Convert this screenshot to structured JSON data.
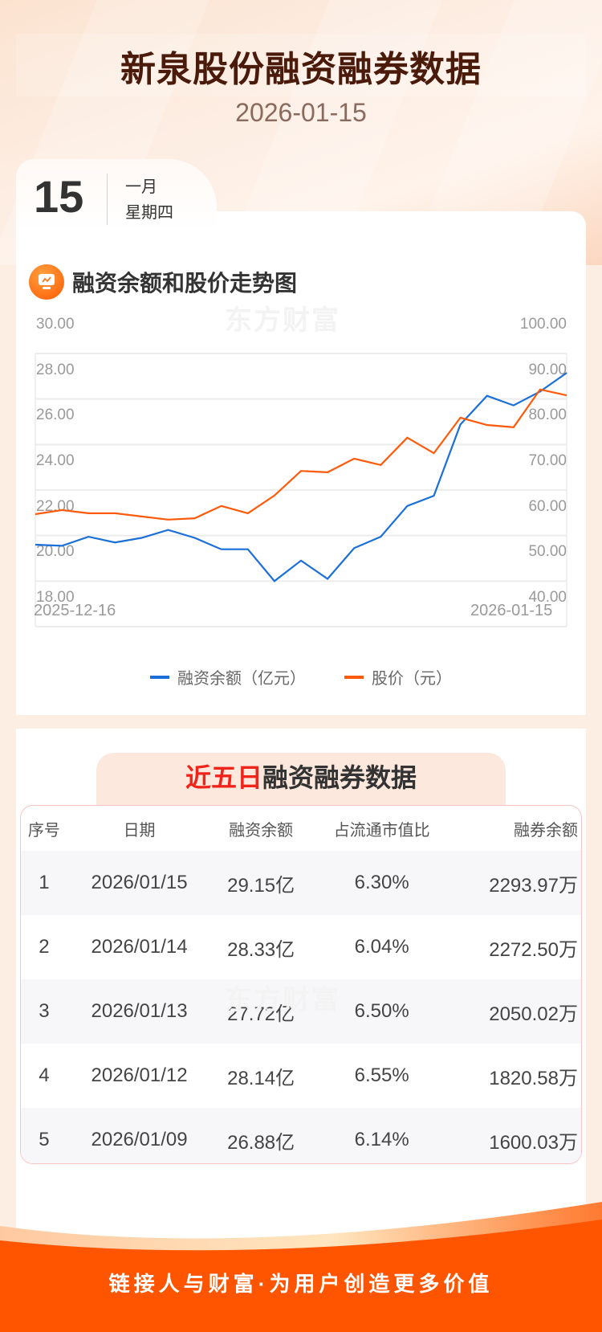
{
  "header": {
    "title": "新泉股份融资融券数据",
    "date": "2026-01-15"
  },
  "date_tab": {
    "day": "15",
    "month": "一月",
    "weekday": "星期四"
  },
  "chart_section": {
    "title": "融资余额和股价走势图",
    "icon": "chart-trend-icon",
    "watermark": "东方财富"
  },
  "chart_data": {
    "type": "line",
    "title": "融资余额和股价走势图",
    "x_start_label": "2025-12-16",
    "x_end_label": "2026-01-15",
    "x": [
      1,
      2,
      3,
      4,
      5,
      6,
      7,
      8,
      9,
      10,
      11,
      12,
      13,
      14,
      15,
      16,
      17,
      18,
      19,
      20,
      21
    ],
    "left_axis": {
      "label": "融资余额（亿元）",
      "ticks": [
        "30.00",
        "28.00",
        "26.00",
        "24.00",
        "22.00",
        "20.00",
        "18.00"
      ],
      "range": [
        18,
        30
      ]
    },
    "right_axis": {
      "label": "股价（元）",
      "ticks": [
        "100.00",
        "90.00",
        "80.00",
        "70.00",
        "60.00",
        "50.00",
        "40.00"
      ],
      "range": [
        40,
        100
      ]
    },
    "series": [
      {
        "name": "融资余额（亿元）",
        "axis": "left",
        "color": "#1a6fd8",
        "values": [
          21.6,
          21.55,
          21.95,
          21.7,
          21.9,
          22.25,
          21.9,
          21.4,
          21.4,
          20.0,
          20.9,
          20.1,
          21.45,
          21.95,
          23.3,
          23.75,
          26.88,
          28.14,
          27.72,
          28.33,
          29.15
        ]
      },
      {
        "name": "股价（元）",
        "axis": "right",
        "color": "#ff5a0a",
        "values": [
          64.7,
          65.6,
          64.9,
          64.9,
          64.2,
          63.5,
          63.8,
          66.5,
          64.9,
          68.8,
          74.2,
          73.9,
          76.9,
          75.5,
          81.5,
          78.1,
          85.9,
          84.3,
          83.8,
          92.1,
          90.8
        ]
      }
    ],
    "grid": true,
    "legend_position": "bottom"
  },
  "legend": [
    {
      "label": "融资余额（亿元）",
      "color": "#1a6fd8"
    },
    {
      "label": "股价（元）",
      "color": "#ff5a0a"
    }
  ],
  "table_section": {
    "title_highlight": "近五日",
    "title_rest": "融资融券数据",
    "watermark": "东方财富",
    "columns": [
      "序号",
      "日期",
      "融资余额",
      "占流通市值比",
      "融券余额"
    ],
    "rows": [
      [
        "1",
        "2026/01/15",
        "29.15亿",
        "6.30%",
        "2293.97万"
      ],
      [
        "2",
        "2026/01/14",
        "28.33亿",
        "6.04%",
        "2272.50万"
      ],
      [
        "3",
        "2026/01/13",
        "27.72亿",
        "6.50%",
        "2050.02万"
      ],
      [
        "4",
        "2026/01/12",
        "28.14亿",
        "6.55%",
        "1820.58万"
      ],
      [
        "5",
        "2026/01/09",
        "26.88亿",
        "6.14%",
        "1600.03万"
      ]
    ]
  },
  "footer": {
    "slogan": "链接人与财富·为用户创造更多价值"
  },
  "colors": {
    "brand_orange": "#ff5500",
    "title_brown": "#4a1a0a",
    "highlight_red": "#f0241a",
    "blue_line": "#1a6fd8",
    "orange_line": "#ff5a0a"
  }
}
